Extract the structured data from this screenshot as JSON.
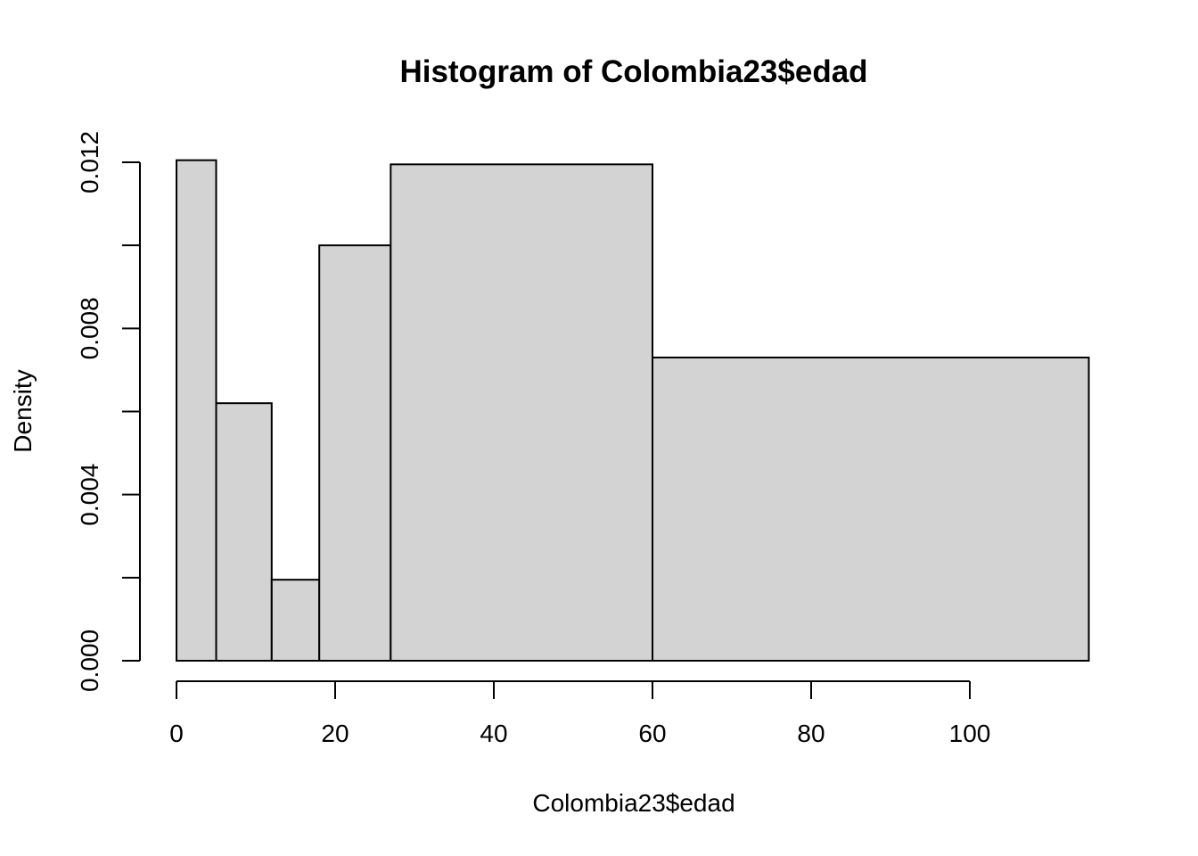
{
  "chart_data": {
    "type": "bar",
    "title": "Histogram of Colombia23$edad",
    "xlabel": "Colombia23$edad",
    "ylabel": "Density",
    "bins": [
      {
        "from": 0,
        "to": 5,
        "density": 0.01205
      },
      {
        "from": 5,
        "to": 12,
        "density": 0.0062
      },
      {
        "from": 12,
        "to": 18,
        "density": 0.00195
      },
      {
        "from": 18,
        "to": 27,
        "density": 0.01
      },
      {
        "from": 27,
        "to": 60,
        "density": 0.01195
      },
      {
        "from": 60,
        "to": 115,
        "density": 0.0073
      }
    ],
    "xlim": [
      0,
      115
    ],
    "ylim": [
      0,
      0.012
    ],
    "x_ticks": [
      0,
      20,
      40,
      60,
      80,
      100
    ],
    "x_tick_labels": [
      "0",
      "20",
      "40",
      "60",
      "80",
      "100"
    ],
    "y_ticks": [
      0,
      0.002,
      0.004,
      0.006,
      0.008,
      0.01,
      0.012
    ],
    "y_tick_labels": [
      "0.000",
      "",
      "0.004",
      "",
      "0.008",
      "",
      "0.012"
    ],
    "grid": false,
    "colors": {
      "bar_fill": "#d3d3d3",
      "bar_stroke": "#000000",
      "background": "#ffffff"
    }
  }
}
